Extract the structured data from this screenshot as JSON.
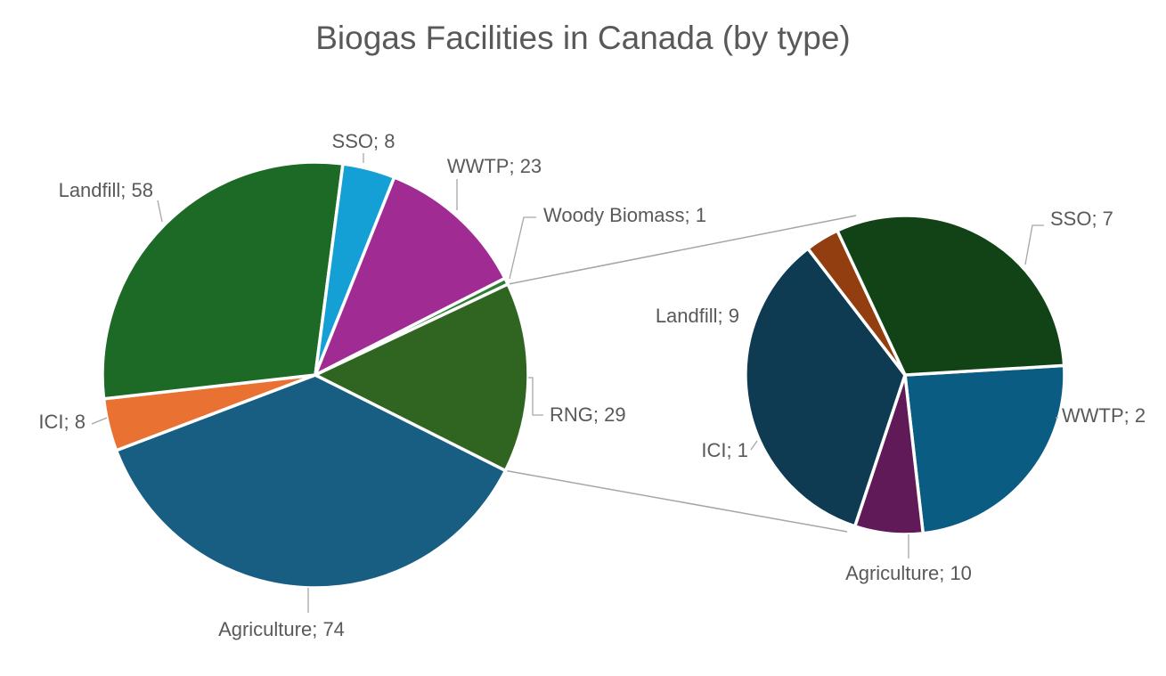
{
  "chart_data": {
    "type": "pie",
    "title": "Biogas Facilities in Canada (by type)",
    "main_pie": {
      "slices": [
        {
          "label": "Agriculture",
          "value": 74,
          "color": "#175E82"
        },
        {
          "label": "ICI",
          "value": 8,
          "color": "#E97132"
        },
        {
          "label": "Landfill",
          "value": 58,
          "color": "#1C6A25"
        },
        {
          "label": "SSO",
          "value": 8,
          "color": "#14A0D4"
        },
        {
          "label": "WWTP",
          "value": 23,
          "color": "#A02B93"
        },
        {
          "label": "Woody Biomass",
          "value": 1,
          "color": "#2E7D32"
        },
        {
          "label": "RNG",
          "value": 29,
          "color": "#2F6520"
        }
      ]
    },
    "secondary_pie": {
      "breakdown_of": "RNG",
      "slices": [
        {
          "label": "SSO",
          "value": 7,
          "color": "#0A5C82"
        },
        {
          "label": "WWTP",
          "value": 2,
          "color": "#611A58"
        },
        {
          "label": "Agriculture",
          "value": 10,
          "color": "#0E3A52"
        },
        {
          "label": "ICI",
          "value": 1,
          "color": "#933E10"
        },
        {
          "label": "Landfill",
          "value": 9,
          "color": "#114316"
        }
      ]
    },
    "label_format": "{label}; {value}",
    "legend": "none"
  }
}
